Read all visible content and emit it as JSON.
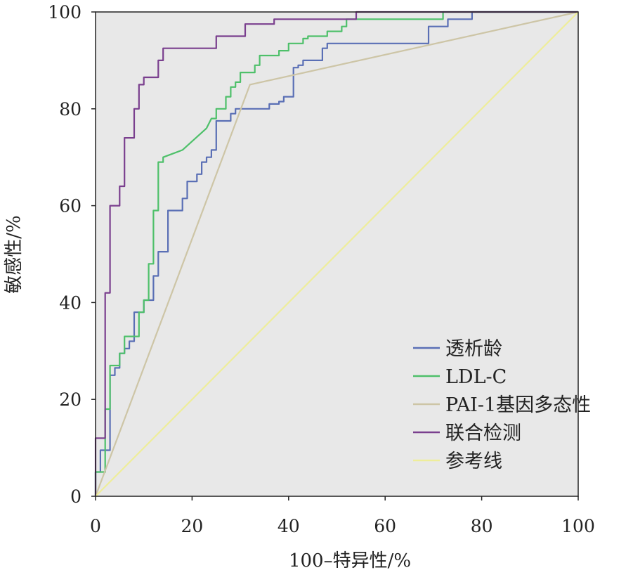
{
  "chart_data": {
    "type": "line",
    "title": "",
    "xlabel": "100–特异性/%",
    "ylabel": "敏感性/%",
    "xlim": [
      0,
      100
    ],
    "ylim": [
      0,
      100
    ],
    "xticks": [
      0,
      20,
      40,
      60,
      80,
      100
    ],
    "yticks": [
      0,
      20,
      40,
      60,
      80,
      100
    ],
    "grid": false,
    "legend_position": "bottom-right",
    "plot_background": "#e8e8e8",
    "series": [
      {
        "name": "透析龄",
        "color": "#5a6fb5",
        "step": true,
        "points": [
          [
            0,
            0
          ],
          [
            0,
            5
          ],
          [
            1,
            5
          ],
          [
            1,
            9.5
          ],
          [
            3,
            9.5
          ],
          [
            3,
            25
          ],
          [
            4,
            25
          ],
          [
            4,
            26.5
          ],
          [
            5,
            26.5
          ],
          [
            5,
            29.5
          ],
          [
            6,
            29.5
          ],
          [
            6,
            30.5
          ],
          [
            7,
            30.5
          ],
          [
            7,
            32
          ],
          [
            8,
            32
          ],
          [
            8,
            38
          ],
          [
            10,
            38
          ],
          [
            10,
            40.5
          ],
          [
            12,
            40.5
          ],
          [
            12,
            45.5
          ],
          [
            13,
            45.5
          ],
          [
            13,
            50.5
          ],
          [
            15,
            50.5
          ],
          [
            15,
            59
          ],
          [
            18,
            59
          ],
          [
            18,
            61.5
          ],
          [
            19,
            61.5
          ],
          [
            19,
            65
          ],
          [
            21,
            65
          ],
          [
            21,
            66.5
          ],
          [
            22,
            66.5
          ],
          [
            22,
            69
          ],
          [
            23,
            69
          ],
          [
            23,
            70
          ],
          [
            24,
            70
          ],
          [
            24,
            71.5
          ],
          [
            25,
            71.5
          ],
          [
            25,
            77.5
          ],
          [
            28,
            77.5
          ],
          [
            28,
            79
          ],
          [
            29,
            79
          ],
          [
            29,
            80
          ],
          [
            36,
            80
          ],
          [
            36,
            81
          ],
          [
            38,
            81
          ],
          [
            38,
            81.5
          ],
          [
            39,
            81.5
          ],
          [
            39,
            82.5
          ],
          [
            41,
            82.5
          ],
          [
            41,
            88.5
          ],
          [
            42,
            88.5
          ],
          [
            42,
            89
          ],
          [
            43,
            89
          ],
          [
            43,
            90
          ],
          [
            47,
            90
          ],
          [
            47,
            92.5
          ],
          [
            48,
            92.5
          ],
          [
            48,
            93.5
          ],
          [
            69,
            93.5
          ],
          [
            69,
            97
          ],
          [
            73,
            97
          ],
          [
            73,
            98.5
          ],
          [
            78,
            98.5
          ],
          [
            78,
            100
          ],
          [
            100,
            100
          ]
        ]
      },
      {
        "name": "LDL-C",
        "color": "#4ec06a",
        "step": true,
        "points": [
          [
            0,
            0
          ],
          [
            0,
            5
          ],
          [
            2,
            5
          ],
          [
            2,
            18
          ],
          [
            3,
            18
          ],
          [
            3,
            27
          ],
          [
            5,
            27
          ],
          [
            5,
            29.5
          ],
          [
            6,
            29.5
          ],
          [
            6,
            33
          ],
          [
            9,
            33
          ],
          [
            9,
            38
          ],
          [
            10,
            38
          ],
          [
            10,
            40.5
          ],
          [
            11,
            40.5
          ],
          [
            11,
            48
          ],
          [
            12,
            48
          ],
          [
            12,
            59
          ],
          [
            13,
            59
          ],
          [
            13,
            69
          ],
          [
            14,
            69
          ],
          [
            14,
            70
          ],
          [
            18,
            71.5
          ],
          [
            23,
            76
          ],
          [
            24,
            78
          ],
          [
            25,
            78
          ],
          [
            25,
            80
          ],
          [
            27,
            80
          ],
          [
            27,
            82.5
          ],
          [
            28,
            82.5
          ],
          [
            28,
            84.5
          ],
          [
            29,
            84.5
          ],
          [
            29,
            85.5
          ],
          [
            30,
            85.5
          ],
          [
            30,
            87.5
          ],
          [
            33,
            87.5
          ],
          [
            33,
            89
          ],
          [
            34,
            89
          ],
          [
            34,
            91
          ],
          [
            38,
            91
          ],
          [
            38,
            92
          ],
          [
            40,
            92
          ],
          [
            40,
            93.5
          ],
          [
            43,
            93.5
          ],
          [
            43,
            94.5
          ],
          [
            44,
            94.5
          ],
          [
            44,
            95
          ],
          [
            48,
            95
          ],
          [
            48,
            96
          ],
          [
            51,
            96
          ],
          [
            51,
            97
          ],
          [
            52,
            97
          ],
          [
            52,
            98.5
          ],
          [
            72,
            98.5
          ],
          [
            72,
            100
          ],
          [
            100,
            100
          ]
        ]
      },
      {
        "name": "PAI-1基因多态性",
        "color": "#cdc5a6",
        "step": false,
        "points": [
          [
            0,
            0
          ],
          [
            32,
            85
          ],
          [
            100,
            100
          ]
        ]
      },
      {
        "name": "联合检测",
        "color": "#7a3f8e",
        "step": true,
        "points": [
          [
            0,
            0
          ],
          [
            0,
            12
          ],
          [
            2,
            12
          ],
          [
            2,
            42
          ],
          [
            3,
            42
          ],
          [
            3,
            60
          ],
          [
            5,
            60
          ],
          [
            5,
            64
          ],
          [
            6,
            64
          ],
          [
            6,
            74
          ],
          [
            8,
            74
          ],
          [
            8,
            80
          ],
          [
            9,
            80
          ],
          [
            9,
            85
          ],
          [
            10,
            85
          ],
          [
            10,
            86.5
          ],
          [
            13,
            86.5
          ],
          [
            13,
            90
          ],
          [
            14,
            90
          ],
          [
            14,
            92.5
          ],
          [
            25,
            92.5
          ],
          [
            25,
            95
          ],
          [
            31,
            95
          ],
          [
            31,
            97.5
          ],
          [
            37,
            97.5
          ],
          [
            37,
            98.5
          ],
          [
            54,
            98.5
          ],
          [
            54,
            100
          ],
          [
            100,
            100
          ]
        ]
      },
      {
        "name": "参考线",
        "color": "#eeed9a",
        "step": false,
        "points": [
          [
            0,
            0
          ],
          [
            100,
            100
          ]
        ]
      }
    ]
  }
}
